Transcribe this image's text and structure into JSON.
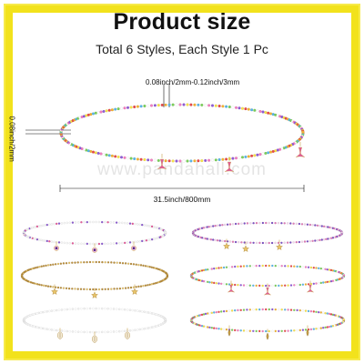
{
  "header": {
    "title": "Product size",
    "subtitle": "Total 6 Styles, Each Style 1 Pc"
  },
  "dimensions": {
    "bead_size": "0.08inch/2mm-0.12inch/3mm",
    "thread_size": "0.08inch/2mm",
    "length": "31.5inch/800mm"
  },
  "watermark": "www.pandahall.com",
  "colors": {
    "frame": "#f2e21c",
    "text": "#111111",
    "seed_multi": [
      "#e84a4a",
      "#f2b233",
      "#59b6e6",
      "#7bcf5a",
      "#ffffff",
      "#f27ec0",
      "#8e5bd6",
      "#f7e24a"
    ],
    "charm_pink": "#e0569c",
    "gold": "#c9a24a",
    "pearl": "#f3f3f3"
  },
  "styles": [
    {
      "name": "pink-purple-evil-eye",
      "charm": "evil-eye-icon"
    },
    {
      "name": "purple-starfish",
      "charm": "starfish-icon"
    },
    {
      "name": "gold-starfish",
      "charm": "starfish-icon"
    },
    {
      "name": "multicolor-mermaid-tail",
      "charm": "mermaid-tail-icon"
    },
    {
      "name": "white-cowrie-shell",
      "charm": "cowrie-shell-icon"
    },
    {
      "name": "multicolor-leaf",
      "charm": "leaf-icon"
    }
  ]
}
